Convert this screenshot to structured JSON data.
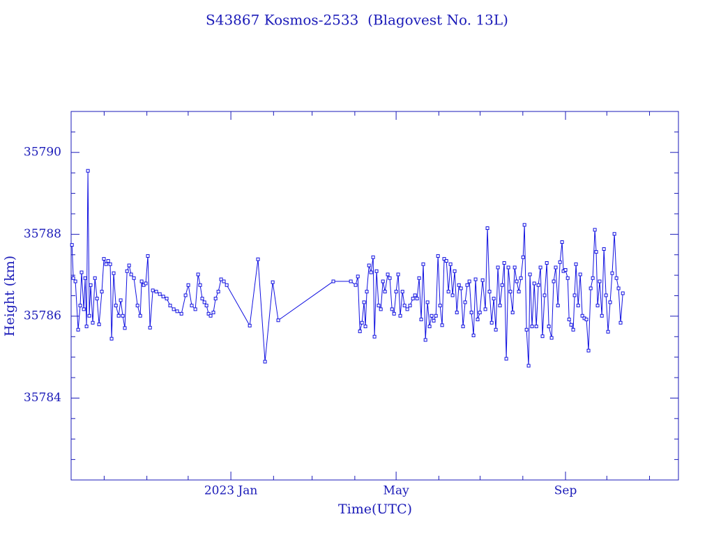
{
  "chart_data": {
    "type": "line",
    "title": "S43867 Kosmos-2533  (Blagovest No. 13L)",
    "xlabel": "Time(UTC)",
    "ylabel": "Height (km)",
    "color": "#1010e0",
    "xlim": [
      -116,
      325
    ],
    "xticks": [
      {
        "value": 0,
        "label": "2023 Jan"
      },
      {
        "value": 120,
        "label": "May"
      },
      {
        "value": 243,
        "label": "Sep"
      }
    ],
    "xminorticks": [
      -92,
      -61,
      -31,
      31,
      59,
      90,
      151,
      181,
      212,
      273,
      304
    ],
    "ylim": [
      35782,
      35791
    ],
    "yticks": [
      35784,
      35786,
      35788,
      35790
    ],
    "yminorticks": [
      35782.5,
      35783,
      35783.5,
      35784.5,
      35785,
      35785.5,
      35786.5,
      35787,
      35787.5,
      35788.5,
      35789,
      35789.5,
      35790.5
    ],
    "x": [
      -115.4,
      -114.4,
      -112.9,
      -110.9,
      -109.4,
      -108.4,
      -106.8,
      -105.8,
      -104.8,
      -103.8,
      -102.8,
      -101.8,
      -100.3,
      -98.7,
      -97.2,
      -95.7,
      -93.7,
      -92.2,
      -90.6,
      -89.1,
      -87.6,
      -86.6,
      -85.1,
      -83.5,
      -81.5,
      -80.0,
      -78.5,
      -77.0,
      -75.4,
      -73.9,
      -72.4,
      -70.4,
      -67.8,
      -65.8,
      -64.8,
      -63.3,
      -61.8,
      -60.3,
      -58.7,
      -56.7,
      -54.2,
      -51.6,
      -49.1,
      -46.6,
      -44.1,
      -41.5,
      -39.0,
      -35.9,
      -32.9,
      -30.9,
      -28.4,
      -25.8,
      -23.8,
      -22.3,
      -20.8,
      -19.2,
      -17.7,
      -16.2,
      -14.7,
      -12.7,
      -11.1,
      -9.1,
      -7.1,
      -5.1,
      -3.0,
      13.7,
      19.7,
      24.8,
      30.4,
      34.4,
      74.4,
      87.1,
      90.6,
      92.2,
      93.7,
      95.2,
      96.7,
      97.7,
      98.7,
      100.3,
      101.8,
      103.3,
      104.3,
      105.8,
      107.3,
      108.9,
      110.4,
      111.9,
      113.9,
      115.4,
      117.0,
      118.5,
      120.0,
      121.5,
      123.0,
      124.6,
      126.1,
      128.1,
      130.1,
      132.2,
      133.7,
      135.2,
      136.7,
      138.2,
      139.7,
      141.3,
      142.8,
      144.3,
      145.8,
      147.3,
      148.9,
      150.4,
      151.9,
      153.4,
      154.9,
      156.5,
      158.0,
      159.5,
      161.0,
      162.5,
      164.1,
      165.6,
      167.1,
      168.6,
      170.1,
      171.6,
      173.2,
      174.7,
      176.2,
      177.7,
      179.2,
      180.8,
      182.8,
      184.8,
      186.3,
      187.8,
      189.4,
      190.9,
      192.4,
      193.9,
      195.4,
      197.0,
      198.5,
      200.0,
      201.5,
      203.0,
      204.6,
      206.1,
      207.6,
      209.1,
      210.6,
      212.2,
      213.2,
      214.7,
      216.2,
      217.2,
      218.7,
      220.3,
      221.8,
      223.3,
      224.8,
      226.3,
      227.8,
      229.4,
      230.9,
      232.9,
      234.4,
      235.9,
      237.5,
      239.0,
      240.5,
      241.5,
      243.0,
      244.6,
      245.6,
      247.1,
      248.6,
      249.6,
      250.6,
      252.2,
      253.7,
      255.2,
      256.7,
      258.2,
      259.7,
      261.3,
      262.8,
      264.3,
      265.3,
      266.3,
      267.8,
      269.4,
      270.9,
      272.4,
      273.9,
      275.4,
      276.9,
      278.5,
      280.0,
      281.5,
      283.0,
      284.6
    ],
    "values": [
      35787.74,
      35786.93,
      35786.85,
      35785.67,
      35786.26,
      35787.07,
      35786.17,
      35786.93,
      35785.75,
      35789.55,
      35786.01,
      35786.76,
      35785.84,
      35786.93,
      35786.43,
      35785.8,
      35786.6,
      35787.4,
      35787.27,
      35787.35,
      35787.27,
      35785.45,
      35787.05,
      35786.26,
      35786.01,
      35786.39,
      35786.01,
      35785.71,
      35787.1,
      35787.24,
      35787.02,
      35786.93,
      35786.26,
      35786.01,
      35786.85,
      35786.76,
      35786.8,
      35787.47,
      35785.72,
      35786.63,
      35786.6,
      35786.54,
      35786.48,
      35786.43,
      35786.26,
      35786.17,
      35786.12,
      35786.06,
      35786.51,
      35786.76,
      35786.26,
      35786.17,
      35787.02,
      35786.76,
      35786.43,
      35786.34,
      35786.26,
      35786.06,
      35786.01,
      35786.09,
      35786.43,
      35786.6,
      35786.9,
      35786.85,
      35786.76,
      35785.77,
      35787.39,
      35784.89,
      35786.83,
      35785.9,
      35786.85,
      35786.85,
      35786.76,
      35786.97,
      35785.63,
      35785.84,
      35786.34,
      35785.75,
      35786.6,
      35787.24,
      35787.07,
      35787.44,
      35785.5,
      35787.1,
      35786.26,
      35786.17,
      35786.85,
      35786.6,
      35787.02,
      35786.93,
      35786.17,
      35786.06,
      35786.6,
      35787.02,
      35786.01,
      35786.6,
      35786.26,
      35786.17,
      35786.26,
      35786.43,
      35786.51,
      35786.43,
      35786.93,
      35785.92,
      35787.27,
      35785.42,
      35786.34,
      35785.75,
      35786.01,
      35785.89,
      35786.01,
      35787.47,
      35786.26,
      35785.78,
      35787.4,
      35787.35,
      35786.6,
      35787.27,
      35786.51,
      35787.1,
      35786.09,
      35786.76,
      35786.68,
      35785.75,
      35786.34,
      35786.76,
      35786.85,
      35786.09,
      35785.53,
      35786.9,
      35785.92,
      35786.09,
      35786.88,
      35786.17,
      35788.15,
      35786.6,
      35785.84,
      35786.43,
      35785.67,
      35787.19,
      35786.26,
      35786.76,
      35787.3,
      35784.96,
      35787.19,
      35786.6,
      35786.09,
      35787.19,
      35786.85,
      35786.6,
      35786.93,
      35787.44,
      35788.23,
      35785.67,
      35784.79,
      35787.02,
      35785.75,
      35786.8,
      35785.75,
      35786.76,
      35787.19,
      35785.51,
      35786.51,
      35787.3,
      35785.75,
      35785.47,
      35786.85,
      35787.19,
      35786.26,
      35787.32,
      35787.81,
      35787.1,
      35787.13,
      35786.93,
      35785.92,
      35785.79,
      35785.67,
      35786.51,
      35787.27,
      35786.26,
      35787.02,
      35786.01,
      35785.95,
      35785.92,
      35785.16,
      35786.68,
      35786.93,
      35788.11,
      35787.57,
      35786.26,
      35786.85,
      35786.01,
      35787.64,
      35786.51,
      35785.62,
      35786.34,
      35787.05,
      35788.01,
      35786.93,
      35786.68,
      35785.84,
      35786.56
    ]
  }
}
